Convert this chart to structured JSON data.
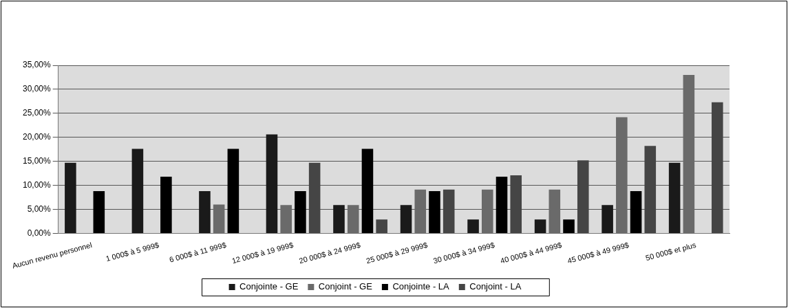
{
  "chart_data": {
    "type": "bar",
    "categories": [
      "Aucun revenu personnel",
      "1 000$ à 5 999$",
      "6 000$ à 11 999$",
      "12 000$ à 19 999$",
      "20 000$ à 24 999$",
      "25 000$ à 29 999$",
      "30 000$ à 34 999$",
      "40 000$ à 44 999$",
      "45 000$ à 49 999$",
      "50 000$ et plus"
    ],
    "series": [
      {
        "name": "Conjointe - GE",
        "color": "#1a1a1a",
        "values": [
          14.7,
          17.6,
          8.8,
          20.6,
          5.9,
          5.9,
          2.9,
          2.9,
          5.9,
          14.7
        ]
      },
      {
        "name": "Conjoint - GE",
        "color": "#6a6a6a",
        "values": [
          0,
          0,
          6,
          5.9,
          5.9,
          9.1,
          9.1,
          9.1,
          24.2,
          33
        ]
      },
      {
        "name": "Conjointe - LA",
        "color": "#000000",
        "values": [
          8.8,
          11.8,
          17.6,
          8.8,
          17.6,
          8.8,
          11.8,
          2.9,
          8.8,
          0
        ]
      },
      {
        "name": "Conjoint - LA",
        "color": "#454545",
        "values": [
          0,
          0,
          0,
          14.7,
          2.9,
          9.1,
          12.1,
          15.2,
          18.2,
          27.3
        ]
      }
    ],
    "ylim": [
      0,
      35
    ],
    "yticks": [
      {
        "value": 0,
        "label": "0,00%"
      },
      {
        "value": 5,
        "label": "5,00%"
      },
      {
        "value": 10,
        "label": "10,00%"
      },
      {
        "value": 15,
        "label": "15,00%"
      },
      {
        "value": 20,
        "label": "20,00%"
      },
      {
        "value": 25,
        "label": "25,00%"
      },
      {
        "value": 30,
        "label": "30,00%"
      },
      {
        "value": 35,
        "label": "35,00%"
      }
    ],
    "grid": "y",
    "legend": "bottom"
  }
}
